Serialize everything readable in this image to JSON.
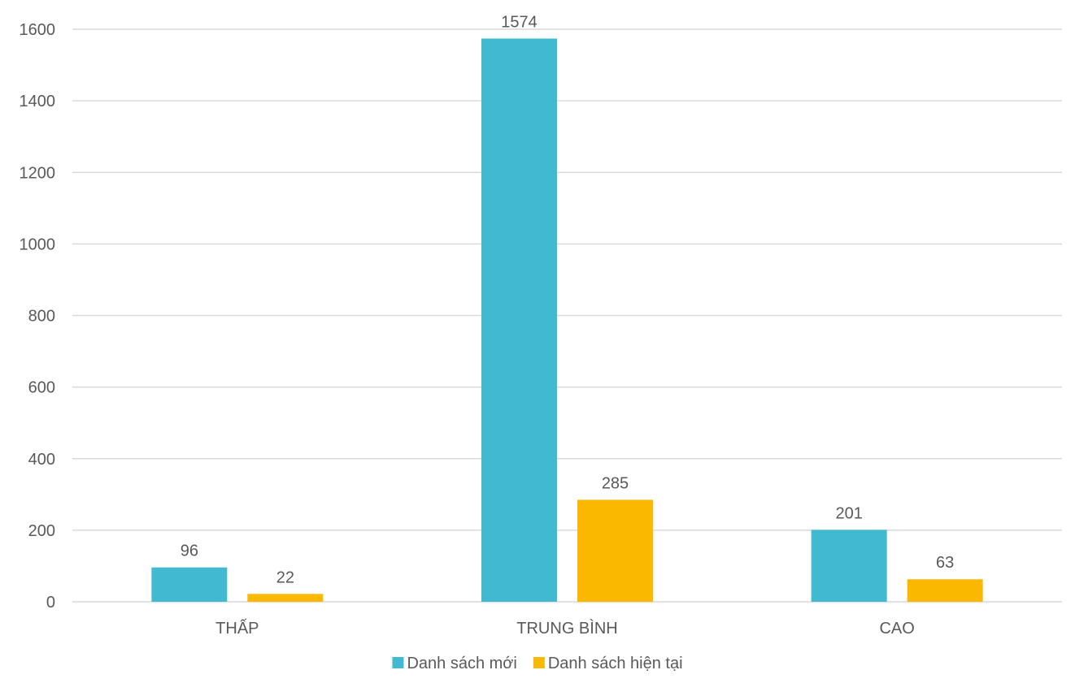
{
  "chart_data": {
    "type": "bar",
    "title": "",
    "xlabel": "",
    "ylabel": "",
    "categories": [
      "THẤP",
      "TRUNG BÌNH",
      "CAO"
    ],
    "series": [
      {
        "name": "Danh sách mới",
        "values": [
          96,
          1574,
          201
        ],
        "color": "#40B9D1"
      },
      {
        "name": "Danh sách hiện tại",
        "values": [
          22,
          285,
          63
        ],
        "color": "#FAB800"
      }
    ],
    "ylim": [
      0,
      1600
    ],
    "yticks": [
      0,
      200,
      400,
      600,
      800,
      1000,
      1200,
      1400,
      1600
    ],
    "grid": true,
    "legend_position": "bottom",
    "gridline_color": "#D9D9D9",
    "text_color": "#595959"
  }
}
